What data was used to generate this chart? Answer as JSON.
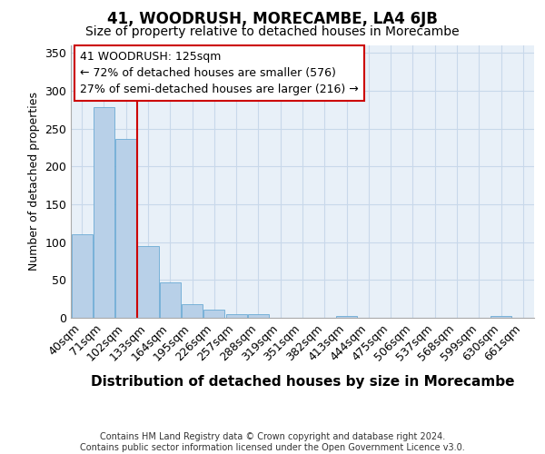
{
  "title": "41, WOODRUSH, MORECAMBE, LA4 6JB",
  "subtitle": "Size of property relative to detached houses in Morecambe",
  "xlabel": "Distribution of detached houses by size in Morecambe",
  "ylabel": "Number of detached properties",
  "categories": [
    "40sqm",
    "71sqm",
    "102sqm",
    "133sqm",
    "164sqm",
    "195sqm",
    "226sqm",
    "257sqm",
    "288sqm",
    "319sqm",
    "351sqm",
    "382sqm",
    "413sqm",
    "444sqm",
    "475sqm",
    "506sqm",
    "537sqm",
    "568sqm",
    "599sqm",
    "630sqm",
    "661sqm"
  ],
  "values": [
    110,
    278,
    236,
    95,
    47,
    18,
    11,
    5,
    5,
    0,
    0,
    0,
    3,
    0,
    0,
    0,
    0,
    0,
    0,
    3,
    0
  ],
  "bar_color": "#b8d0e8",
  "bar_edge_color": "#6aaad4",
  "grid_color": "#c8d8ea",
  "bg_color": "#e8f0f8",
  "vline_x_index": 2.5,
  "vline_color": "#cc0000",
  "annotation_text": "41 WOODRUSH: 125sqm\n← 72% of detached houses are smaller (576)\n27% of semi-detached houses are larger (216) →",
  "annotation_box_color": "white",
  "annotation_box_edge": "#cc0000",
  "footnote": "Contains HM Land Registry data © Crown copyright and database right 2024.\nContains public sector information licensed under the Open Government Licence v3.0.",
  "ylim": [
    0,
    360
  ],
  "yticks": [
    0,
    50,
    100,
    150,
    200,
    250,
    300,
    350
  ],
  "title_fontsize": 12,
  "subtitle_fontsize": 10,
  "ylabel_fontsize": 9,
  "xlabel_fontsize": 11,
  "tick_fontsize": 9,
  "annot_fontsize": 9,
  "footnote_fontsize": 7
}
